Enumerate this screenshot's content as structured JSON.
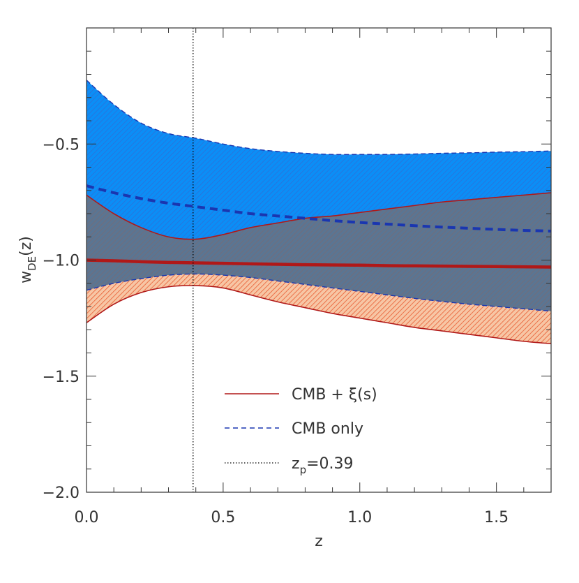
{
  "chart_data": {
    "type": "area",
    "xlabel": "z",
    "ylabel_main": "w",
    "ylabel_sub": "DE",
    "ylabel_arg": "(z)",
    "xlim": [
      0.0,
      1.7
    ],
    "ylim": [
      -2.0,
      -0.0
    ],
    "xticks": [
      0.0,
      0.5,
      1.0,
      1.5
    ],
    "xtick_labels": [
      "0.0",
      "0.5",
      "1.0",
      "1.5"
    ],
    "yticks": [
      -2.0,
      -1.5,
      -1.0,
      -0.5
    ],
    "ytick_labels": [
      "−2.0",
      "−1.5",
      "−1.0",
      "−0.5"
    ],
    "x": [
      0.0,
      0.1,
      0.2,
      0.3,
      0.4,
      0.5,
      0.6,
      0.7,
      0.8,
      0.9,
      1.0,
      1.1,
      1.2,
      1.3,
      1.4,
      1.5,
      1.6,
      1.7
    ],
    "series": [
      {
        "name": "CMB + ξ(s)",
        "style": "solid",
        "color": "#b01818",
        "fill_color": "#f2a77a",
        "mean": [
          -1.0,
          -1.003,
          -1.007,
          -1.01,
          -1.012,
          -1.014,
          -1.016,
          -1.018,
          -1.02,
          -1.021,
          -1.022,
          -1.024,
          -1.025,
          -1.026,
          -1.027,
          -1.028,
          -1.029,
          -1.03
        ],
        "upper": [
          -0.72,
          -0.8,
          -0.86,
          -0.9,
          -0.91,
          -0.89,
          -0.86,
          -0.84,
          -0.82,
          -0.81,
          -0.795,
          -0.78,
          -0.765,
          -0.75,
          -0.74,
          -0.73,
          -0.72,
          -0.71
        ],
        "lower": [
          -1.27,
          -1.19,
          -1.14,
          -1.115,
          -1.11,
          -1.12,
          -1.15,
          -1.18,
          -1.205,
          -1.23,
          -1.25,
          -1.27,
          -1.29,
          -1.305,
          -1.32,
          -1.335,
          -1.35,
          -1.36
        ]
      },
      {
        "name": "CMB only",
        "style": "dashed",
        "color": "#1a36b0",
        "fill_color": "#0a8ef5",
        "mean": [
          -0.68,
          -0.71,
          -0.735,
          -0.755,
          -0.77,
          -0.785,
          -0.8,
          -0.81,
          -0.82,
          -0.83,
          -0.838,
          -0.845,
          -0.852,
          -0.858,
          -0.863,
          -0.868,
          -0.872,
          -0.875
        ],
        "upper": [
          -0.225,
          -0.33,
          -0.41,
          -0.455,
          -0.475,
          -0.5,
          -0.52,
          -0.532,
          -0.54,
          -0.545,
          -0.545,
          -0.545,
          -0.543,
          -0.54,
          -0.538,
          -0.535,
          -0.533,
          -0.53
        ],
        "lower": [
          -1.13,
          -1.1,
          -1.08,
          -1.065,
          -1.06,
          -1.065,
          -1.075,
          -1.09,
          -1.105,
          -1.12,
          -1.135,
          -1.15,
          -1.165,
          -1.178,
          -1.19,
          -1.2,
          -1.21,
          -1.22
        ]
      }
    ],
    "vline": {
      "x": 0.39,
      "style": "dotted",
      "color": "#000000"
    },
    "legend": [
      {
        "text": "CMB + ξ(s)",
        "style": "solid",
        "color": "#b01818"
      },
      {
        "text": "CMB only",
        "style": "dashed",
        "color": "#1a36b0"
      },
      {
        "text": "z",
        "sub": "p",
        "tail": "=0.39",
        "style": "dotted",
        "color": "#000000"
      }
    ],
    "legend_position": "bottom-center",
    "grid": false,
    "overlap_color": "#5a7590"
  }
}
